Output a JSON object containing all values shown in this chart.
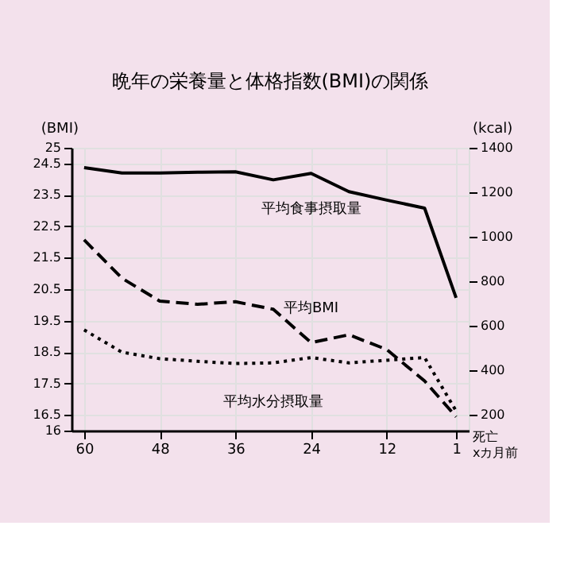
{
  "chart_data": {
    "type": "line",
    "title": "晩年の栄養量と体格指数(BMI)の関係",
    "xlabel": "死亡 xカ月前",
    "ylabel": "(BMI)",
    "y2label": "(kcal)",
    "x": [
      60,
      54,
      48,
      42,
      36,
      30,
      24,
      18,
      12,
      6,
      1
    ],
    "xlim": [
      62,
      -1
    ],
    "xticks": [
      60,
      48,
      36,
      24,
      12,
      1
    ],
    "ylim": [
      16,
      25
    ],
    "yticks": [
      16,
      16.5,
      17.5,
      18.5,
      19.5,
      20.5,
      21.5,
      22.5,
      23.5,
      24.5,
      25
    ],
    "y2lim": [
      130,
      1400
    ],
    "y2ticks": [
      200,
      400,
      600,
      800,
      1000,
      1200,
      1400
    ],
    "grid": true,
    "marker": "none",
    "series": [
      {
        "name": "平均食事摂取量",
        "color": "#000000",
        "axis": "y2",
        "line_style": "solid",
        "values": [
          1311,
          1287,
          1287,
          1290,
          1292,
          1256,
          1285,
          1203,
          1165,
          1129,
          726
        ]
      },
      {
        "name": "平均BMI",
        "color": "#000000",
        "axis": "y",
        "line_style": "dashed",
        "values": [
          22.07,
          20.85,
          20.12,
          20.02,
          20.1,
          19.86,
          18.8,
          19.05,
          18.58,
          17.58,
          16.44
        ]
      },
      {
        "name": "平均水分摂取量",
        "color": "#000000",
        "axis": "y2",
        "line_style": "dotted",
        "values": [
          582,
          482,
          453,
          441,
          431,
          434,
          458,
          434,
          446,
          458,
          218
        ]
      }
    ]
  }
}
